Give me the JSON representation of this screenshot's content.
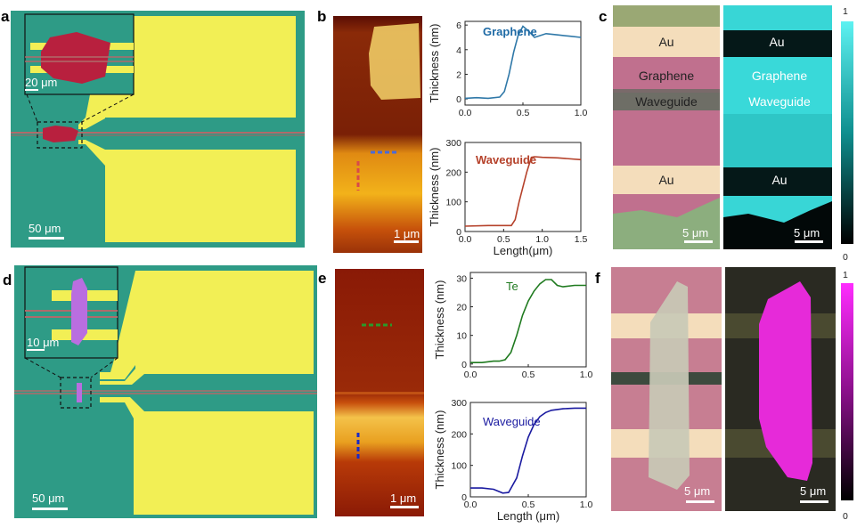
{
  "colors": {
    "substrate": "#2e9b86",
    "gold": "#f2ef55",
    "graphene_flake": "#b8203e",
    "te_flake": "#b96ee0",
    "waveguide_line": "#b06a6a",
    "graphene_curve": "#2f78a8",
    "graphene_text": "#1e6aa5",
    "waveguide_curve_b": "#b5412a",
    "te_curve": "#1f7a1f",
    "waveguide_curve_e": "#1a1aa0",
    "cyan_map": "#38d6d6",
    "magenta_map": "#e62ad9"
  },
  "panels": {
    "a": {
      "label": "a",
      "scale_main": "50 μm",
      "scale_inset": "20 μm"
    },
    "b": {
      "label": "b",
      "scale": "1 μm"
    },
    "c": {
      "label": "c",
      "scale_left": "5 μm",
      "scale_right": "5 μm",
      "left_labels": [
        "Au",
        "Graphene",
        "Waveguide",
        "Au"
      ],
      "right_labels": [
        "Au",
        "Graphene",
        "Waveguide",
        "Au"
      ],
      "colorbar_top": "1",
      "colorbar_bottom": "0"
    },
    "d": {
      "label": "d",
      "scale_main": "50 μm",
      "scale_inset": "10 μm"
    },
    "e": {
      "label": "e",
      "scale": "1 μm"
    },
    "f": {
      "label": "f",
      "scale_left": "5 μm",
      "scale_right": "5 μm",
      "colorbar_top": "1",
      "colorbar_bottom": "0"
    }
  },
  "chart_data": [
    {
      "type": "line",
      "panel": "b",
      "series": [
        {
          "name": "Graphene",
          "x": [
            0,
            0.1,
            0.2,
            0.3,
            0.34,
            0.38,
            0.42,
            0.46,
            0.5,
            0.55,
            0.6,
            0.7,
            0.8,
            0.9,
            1.0
          ],
          "y": [
            0.05,
            0.1,
            0.05,
            0.15,
            0.6,
            2.0,
            3.8,
            5.2,
            5.9,
            5.5,
            5.0,
            5.3,
            5.2,
            5.1,
            5.0
          ]
        }
      ],
      "xticks": [
        "0.0",
        "0.5",
        "1.0"
      ],
      "yticks": [
        "0",
        "2",
        "4",
        "6"
      ],
      "xlim": [
        0,
        1
      ],
      "ylim": [
        -0.5,
        6.3
      ],
      "ylabel": "Thickness (nm)",
      "xlabel": ""
    },
    {
      "type": "line",
      "panel": "b",
      "series": [
        {
          "name": "Waveguide",
          "x": [
            0,
            0.3,
            0.6,
            0.65,
            0.7,
            0.8,
            0.86,
            0.9,
            1.0,
            1.2,
            1.5
          ],
          "y": [
            18,
            20,
            20,
            40,
            100,
            200,
            250,
            252,
            250,
            248,
            242
          ]
        }
      ],
      "xticks": [
        "0.0",
        "0.5",
        "1.0",
        "1.5"
      ],
      "yticks": [
        "0",
        "100",
        "200",
        "300"
      ],
      "xlim": [
        0,
        1.5
      ],
      "ylim": [
        0,
        300
      ],
      "ylabel": "Thickness (nm)",
      "xlabel": "Length(μm)"
    },
    {
      "type": "line",
      "panel": "e",
      "series": [
        {
          "name": "Te",
          "x": [
            0,
            0.1,
            0.2,
            0.25,
            0.3,
            0.35,
            0.4,
            0.45,
            0.5,
            0.55,
            0.6,
            0.65,
            0.7,
            0.75,
            0.8,
            0.9,
            1.0
          ],
          "y": [
            0.5,
            0.5,
            1.0,
            1.0,
            1.5,
            4,
            10,
            17,
            22,
            25.5,
            28,
            29.5,
            29.5,
            27.5,
            27,
            27.5,
            27.5
          ]
        }
      ],
      "xticks": [
        "0.0",
        "0.5",
        "1.0"
      ],
      "yticks": [
        "0",
        "10",
        "20",
        "30"
      ],
      "xlim": [
        0,
        1
      ],
      "ylim": [
        -1,
        32
      ],
      "ylabel": "Thickness (nm)",
      "xlabel": ""
    },
    {
      "type": "line",
      "panel": "e",
      "series": [
        {
          "name": "Waveguide",
          "x": [
            0,
            0.1,
            0.2,
            0.28,
            0.33,
            0.4,
            0.45,
            0.5,
            0.55,
            0.6,
            0.65,
            0.7,
            0.8,
            0.9,
            1.0
          ],
          "y": [
            28,
            28,
            24,
            12,
            14,
            60,
            130,
            190,
            230,
            255,
            268,
            275,
            280,
            282,
            282
          ]
        }
      ],
      "xticks": [
        "0.0",
        "0.5",
        "1.0"
      ],
      "yticks": [
        "0",
        "100",
        "200",
        "300"
      ],
      "xlim": [
        0,
        1
      ],
      "ylim": [
        0,
        300
      ],
      "ylabel": "Thickness (nm)",
      "xlabel": "Length (μm)"
    }
  ]
}
